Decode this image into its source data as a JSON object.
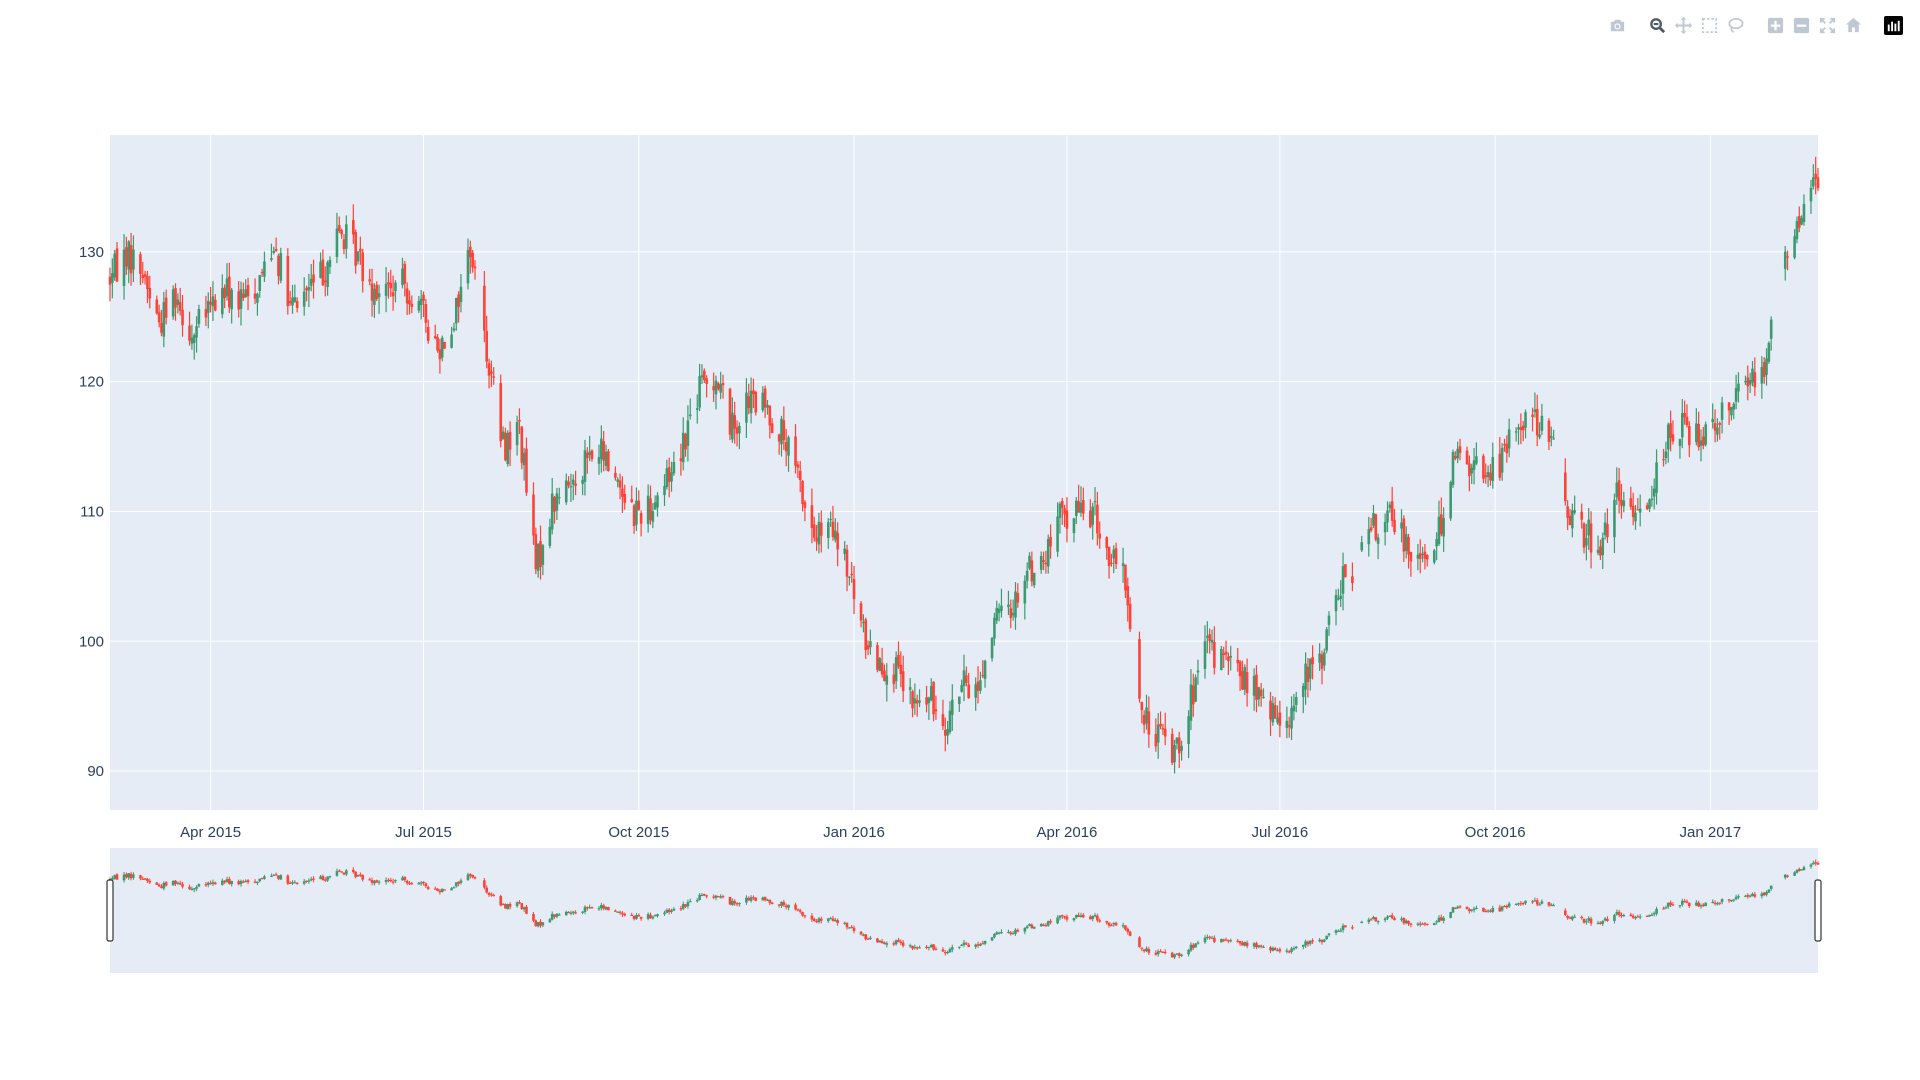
{
  "modebar": {
    "buttons": [
      {
        "name": "camera-icon",
        "title": "Download plot as a png"
      },
      {
        "name": "zoom-icon",
        "title": "Zoom",
        "active": true
      },
      {
        "name": "pan-icon",
        "title": "Pan"
      },
      {
        "name": "box-select-icon",
        "title": "Box Select"
      },
      {
        "name": "lasso-select-icon",
        "title": "Lasso Select"
      },
      {
        "name": "zoom-in-icon",
        "title": "Zoom in"
      },
      {
        "name": "zoom-out-icon",
        "title": "Zoom out"
      },
      {
        "name": "autoscale-icon",
        "title": "Autoscale"
      },
      {
        "name": "reset-axes-icon",
        "title": "Reset axes"
      },
      {
        "name": "plotly-logo-icon",
        "title": "Produced with Plotly"
      }
    ]
  },
  "chart_data": {
    "type": "candlestick",
    "title": "",
    "xlabel": "",
    "ylabel": "",
    "increasing_color": "#3d9970",
    "decreasing_color": "#ff4136",
    "background_color": "#e5ecf6",
    "grid": true,
    "rangeslider": true,
    "x_range": [
      "2015-02-17",
      "2017-02-16"
    ],
    "y_range": [
      87,
      139
    ],
    "x_ticks": [
      {
        "date": "2015-04-01",
        "label": "Apr 2015"
      },
      {
        "date": "2015-07-01",
        "label": "Jul 2015"
      },
      {
        "date": "2015-10-01",
        "label": "Oct 2015"
      },
      {
        "date": "2016-01-01",
        "label": "Jan 2016"
      },
      {
        "date": "2016-04-01",
        "label": "Apr 2016"
      },
      {
        "date": "2016-07-01",
        "label": "Jul 2016"
      },
      {
        "date": "2016-10-01",
        "label": "Oct 2016"
      },
      {
        "date": "2017-01-01",
        "label": "Jan 2017"
      }
    ],
    "y_ticks": [
      90,
      100,
      110,
      120,
      130
    ],
    "close_series": [
      [
        "2015-02-17",
        128.0
      ],
      [
        "2015-02-24",
        130.0
      ],
      [
        "2015-03-03",
        128.5
      ],
      [
        "2015-03-10",
        124.5
      ],
      [
        "2015-03-17",
        127.0
      ],
      [
        "2015-03-24",
        123.5
      ],
      [
        "2015-03-31",
        125.5
      ],
      [
        "2015-04-07",
        127.0
      ],
      [
        "2015-04-14",
        126.0
      ],
      [
        "2015-04-21",
        127.5
      ],
      [
        "2015-04-28",
        131.0
      ],
      [
        "2015-05-05",
        125.5
      ],
      [
        "2015-05-12",
        127.0
      ],
      [
        "2015-05-19",
        128.5
      ],
      [
        "2015-05-26",
        131.5
      ],
      [
        "2015-06-02",
        130.0
      ],
      [
        "2015-06-09",
        127.5
      ],
      [
        "2015-06-16",
        127.0
      ],
      [
        "2015-06-23",
        127.5
      ],
      [
        "2015-06-30",
        125.5
      ],
      [
        "2015-07-07",
        122.5
      ],
      [
        "2015-07-14",
        125.0
      ],
      [
        "2015-07-21",
        130.5
      ],
      [
        "2015-07-28",
        122.5
      ],
      [
        "2015-08-04",
        115.0
      ],
      [
        "2015-08-11",
        116.5
      ],
      [
        "2015-08-18",
        105.5
      ],
      [
        "2015-08-25",
        110.5
      ],
      [
        "2015-09-01",
        112.0
      ],
      [
        "2015-09-08",
        114.0
      ],
      [
        "2015-09-15",
        114.5
      ],
      [
        "2015-09-22",
        112.5
      ],
      [
        "2015-09-29",
        110.0
      ],
      [
        "2015-10-06",
        110.5
      ],
      [
        "2015-10-13",
        112.5
      ],
      [
        "2015-10-20",
        115.5
      ],
      [
        "2015-10-27",
        119.5
      ],
      [
        "2015-11-03",
        120.5
      ],
      [
        "2015-11-10",
        116.5
      ],
      [
        "2015-11-17",
        118.5
      ],
      [
        "2015-11-24",
        118.0
      ],
      [
        "2015-12-01",
        116.0
      ],
      [
        "2015-12-08",
        112.5
      ],
      [
        "2015-12-15",
        108.0
      ],
      [
        "2015-12-22",
        108.5
      ],
      [
        "2015-12-29",
        105.5
      ],
      [
        "2016-01-05",
        100.5
      ],
      [
        "2016-01-12",
        98.5
      ],
      [
        "2016-01-19",
        97.5
      ],
      [
        "2016-01-26",
        95.0
      ],
      [
        "2016-02-02",
        95.5
      ],
      [
        "2016-02-09",
        94.0
      ],
      [
        "2016-02-16",
        96.5
      ],
      [
        "2016-02-23",
        96.5
      ],
      [
        "2016-03-01",
        101.5
      ],
      [
        "2016-03-08",
        102.5
      ],
      [
        "2016-03-15",
        105.5
      ],
      [
        "2016-03-22",
        106.0
      ],
      [
        "2016-03-29",
        109.5
      ],
      [
        "2016-04-05",
        110.0
      ],
      [
        "2016-04-12",
        110.0
      ],
      [
        "2016-04-19",
        106.5
      ],
      [
        "2016-04-26",
        104.5
      ],
      [
        "2016-05-03",
        94.0
      ],
      [
        "2016-05-10",
        93.0
      ],
      [
        "2016-05-17",
        91.5
      ],
      [
        "2016-05-24",
        95.5
      ],
      [
        "2016-05-31",
        99.5
      ],
      [
        "2016-06-07",
        98.5
      ],
      [
        "2016-06-14",
        97.5
      ],
      [
        "2016-06-21",
        96.0
      ],
      [
        "2016-06-28",
        94.0
      ],
      [
        "2016-07-05",
        94.5
      ],
      [
        "2016-07-12",
        97.0
      ],
      [
        "2016-07-19",
        99.0
      ],
      [
        "2016-07-26",
        104.0
      ],
      [
        "2016-08-02",
        106.0
      ],
      [
        "2016-08-09",
        108.5
      ],
      [
        "2016-08-16",
        109.5
      ],
      [
        "2016-08-23",
        108.0
      ],
      [
        "2016-08-30",
        106.5
      ],
      [
        "2016-09-06",
        107.5
      ],
      [
        "2016-09-13",
        114.5
      ],
      [
        "2016-09-20",
        113.5
      ],
      [
        "2016-09-27",
        113.0
      ],
      [
        "2016-10-04",
        114.0
      ],
      [
        "2016-10-11",
        117.0
      ],
      [
        "2016-10-18",
        117.5
      ],
      [
        "2016-10-25",
        115.0
      ],
      [
        "2016-11-01",
        110.5
      ],
      [
        "2016-11-08",
        108.5
      ],
      [
        "2016-11-15",
        107.5
      ],
      [
        "2016-11-22",
        111.0
      ],
      [
        "2016-11-29",
        109.5
      ],
      [
        "2016-12-06",
        111.5
      ],
      [
        "2016-12-13",
        115.5
      ],
      [
        "2016-12-20",
        116.5
      ],
      [
        "2016-12-27",
        116.0
      ],
      [
        "2017-01-03",
        117.0
      ],
      [
        "2017-01-10",
        119.0
      ],
      [
        "2017-01-17",
        120.0
      ],
      [
        "2017-01-24",
        121.5
      ],
      [
        "2017-01-31",
        128.5
      ],
      [
        "2017-02-07",
        132.0
      ],
      [
        "2017-02-14",
        135.5
      ]
    ],
    "gaps": [
      [
        "2015-07-24",
        "2015-07-26"
      ],
      [
        "2016-04-29",
        "2016-05-01"
      ],
      [
        "2016-08-02",
        "2016-08-04"
      ],
      [
        "2016-10-27",
        "2016-10-29"
      ],
      [
        "2017-01-30",
        "2017-02-01"
      ]
    ]
  }
}
